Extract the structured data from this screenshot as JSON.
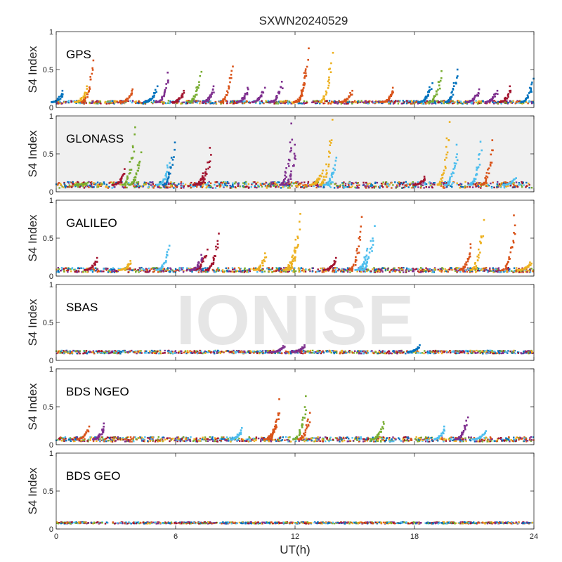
{
  "chart_data": {
    "type": "scatter",
    "title": "SXWN20240529",
    "xlabel": "UT(h)",
    "ylabel": "S4 Index",
    "watermark": "IONISE",
    "xlim": [
      0,
      24
    ],
    "ylim": [
      0,
      1
    ],
    "x_ticks": [
      "0",
      "6",
      "12",
      "18",
      "24"
    ],
    "y_ticks": [
      "0",
      "0.5",
      "1"
    ],
    "grid": false,
    "colors": [
      "#0072BD",
      "#D95319",
      "#EDB120",
      "#7E2F8E",
      "#77AC30",
      "#4DBEEE",
      "#A2142F"
    ],
    "panels": [
      {
        "label": "GPS",
        "shaded": false,
        "baseline": [
          0.07,
          0.02
        ],
        "spikes": [
          {
            "x": 0.3,
            "y": 0.22,
            "c": 0
          },
          {
            "x": 1.8,
            "y": 0.62,
            "c": 1
          },
          {
            "x": 1.5,
            "y": 0.28,
            "c": 2
          },
          {
            "x": 3.8,
            "y": 0.24,
            "c": 1
          },
          {
            "x": 5.0,
            "y": 0.28,
            "c": 0
          },
          {
            "x": 5.6,
            "y": 0.46,
            "c": 3
          },
          {
            "x": 6.4,
            "y": 0.22,
            "c": 6
          },
          {
            "x": 7.2,
            "y": 0.47,
            "c": 4
          },
          {
            "x": 7.9,
            "y": 0.28,
            "c": 3
          },
          {
            "x": 8.8,
            "y": 0.54,
            "c": 1
          },
          {
            "x": 9.6,
            "y": 0.26,
            "c": 3
          },
          {
            "x": 10.4,
            "y": 0.26,
            "c": 3
          },
          {
            "x": 11.3,
            "y": 0.34,
            "c": 3
          },
          {
            "x": 12.6,
            "y": 0.78,
            "c": 1
          },
          {
            "x": 12.5,
            "y": 0.48,
            "c": 1
          },
          {
            "x": 13.8,
            "y": 0.72,
            "c": 2
          },
          {
            "x": 14.8,
            "y": 0.22,
            "c": 1
          },
          {
            "x": 16.9,
            "y": 0.26,
            "c": 1
          },
          {
            "x": 18.8,
            "y": 0.32,
            "c": 0
          },
          {
            "x": 19.3,
            "y": 0.48,
            "c": 4
          },
          {
            "x": 20.1,
            "y": 0.5,
            "c": 0
          },
          {
            "x": 21.2,
            "y": 0.24,
            "c": 3
          },
          {
            "x": 22.1,
            "y": 0.22,
            "c": 3
          },
          {
            "x": 22.8,
            "y": 0.28,
            "c": 6
          },
          {
            "x": 23.9,
            "y": 0.38,
            "c": 0
          }
        ]
      },
      {
        "label": "GLONASS",
        "shaded": true,
        "baseline": [
          0.09,
          0.04
        ],
        "spikes": [
          {
            "x": 1.5,
            "y": 0.12,
            "c": 4
          },
          {
            "x": 3.4,
            "y": 0.3,
            "c": 6
          },
          {
            "x": 3.9,
            "y": 0.85,
            "c": 4
          },
          {
            "x": 4.2,
            "y": 0.52,
            "c": 4
          },
          {
            "x": 5.6,
            "y": 0.38,
            "c": 5
          },
          {
            "x": 5.9,
            "y": 0.65,
            "c": 0
          },
          {
            "x": 7.7,
            "y": 0.58,
            "c": 6
          },
          {
            "x": 7.4,
            "y": 0.26,
            "c": 6
          },
          {
            "x": 11.8,
            "y": 0.9,
            "c": 3
          },
          {
            "x": 12.0,
            "y": 0.62,
            "c": 3
          },
          {
            "x": 13.3,
            "y": 0.28,
            "c": 2
          },
          {
            "x": 13.8,
            "y": 0.95,
            "c": 2
          },
          {
            "x": 14.0,
            "y": 0.45,
            "c": 5
          },
          {
            "x": 19.7,
            "y": 0.92,
            "c": 2
          },
          {
            "x": 20.1,
            "y": 0.62,
            "c": 5
          },
          {
            "x": 21.3,
            "y": 0.66,
            "c": 5
          },
          {
            "x": 21.9,
            "y": 0.68,
            "c": 1
          },
          {
            "x": 18.5,
            "y": 0.2,
            "c": 6
          },
          {
            "x": 23.0,
            "y": 0.18,
            "c": 5
          }
        ]
      },
      {
        "label": "GALILEO",
        "shaded": false,
        "baseline": [
          0.08,
          0.03
        ],
        "spikes": [
          {
            "x": 2.0,
            "y": 0.24,
            "c": 6
          },
          {
            "x": 3.7,
            "y": 0.2,
            "c": 2
          },
          {
            "x": 5.6,
            "y": 0.4,
            "c": 5
          },
          {
            "x": 7.5,
            "y": 0.35,
            "c": 6
          },
          {
            "x": 8.1,
            "y": 0.56,
            "c": 6
          },
          {
            "x": 7.3,
            "y": 0.28,
            "c": 3
          },
          {
            "x": 10.5,
            "y": 0.3,
            "c": 2
          },
          {
            "x": 12.2,
            "y": 0.82,
            "c": 2
          },
          {
            "x": 12.0,
            "y": 0.48,
            "c": 2
          },
          {
            "x": 14.0,
            "y": 0.24,
            "c": 6
          },
          {
            "x": 15.3,
            "y": 0.78,
            "c": 1
          },
          {
            "x": 15.9,
            "y": 0.66,
            "c": 5
          },
          {
            "x": 15.6,
            "y": 0.36,
            "c": 5
          },
          {
            "x": 20.8,
            "y": 0.42,
            "c": 1
          },
          {
            "x": 21.4,
            "y": 0.74,
            "c": 2
          },
          {
            "x": 23.0,
            "y": 0.8,
            "c": 1
          },
          {
            "x": 23.8,
            "y": 0.18,
            "c": 2
          }
        ]
      },
      {
        "label": "SBAS",
        "shaded": false,
        "baseline": [
          0.11,
          0.02
        ],
        "spikes": [
          {
            "x": 11.4,
            "y": 0.19,
            "c": 3
          },
          {
            "x": 12.4,
            "y": 0.2,
            "c": 3
          },
          {
            "x": 18.2,
            "y": 0.2,
            "c": 0
          }
        ]
      },
      {
        "label": "BDS NGEO",
        "shaded": false,
        "baseline": [
          0.07,
          0.03
        ],
        "spikes": [
          {
            "x": 1.6,
            "y": 0.24,
            "c": 1
          },
          {
            "x": 2.4,
            "y": 0.28,
            "c": 3
          },
          {
            "x": 9.3,
            "y": 0.22,
            "c": 5
          },
          {
            "x": 11.2,
            "y": 0.6,
            "c": 1
          },
          {
            "x": 11.0,
            "y": 0.3,
            "c": 1
          },
          {
            "x": 12.5,
            "y": 0.64,
            "c": 4
          },
          {
            "x": 12.7,
            "y": 0.42,
            "c": 1
          },
          {
            "x": 16.4,
            "y": 0.3,
            "c": 4
          },
          {
            "x": 19.5,
            "y": 0.24,
            "c": 5
          },
          {
            "x": 20.6,
            "y": 0.36,
            "c": 3
          },
          {
            "x": 21.5,
            "y": 0.18,
            "c": 5
          }
        ]
      },
      {
        "label": "BDS GEO",
        "shaded": false,
        "baseline": [
          0.08,
          0.01
        ],
        "spikes": []
      }
    ]
  }
}
